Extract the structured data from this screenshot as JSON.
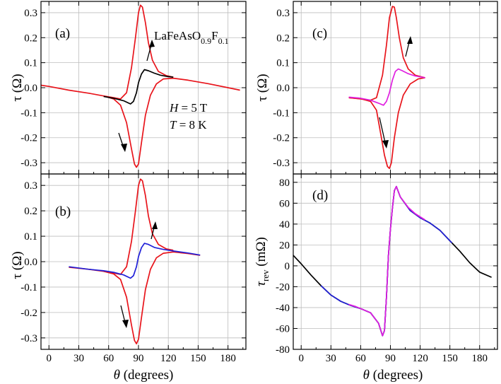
{
  "colors": {
    "red": "#e8141b",
    "black": "#000000",
    "blue": "#2020d8",
    "magenta": "#e020e0"
  },
  "chart_data": [
    {
      "type": "line",
      "panel": "(a)",
      "xlabel": "",
      "ylabel": "τ (Ω)",
      "xlim": [
        -8,
        198
      ],
      "ylim": [
        -0.345,
        0.345
      ],
      "xticks": [
        "0",
        "30",
        "60",
        "90",
        "120",
        "150",
        "180"
      ],
      "yticks": [
        "0.3",
        "0.2",
        "0.1",
        "0.0",
        "-0.1",
        "-0.2",
        "-0.3"
      ],
      "grid": true,
      "annotations": {
        "sample": "LaFeAsO",
        "sub1": "0.9",
        "mid": "F",
        "sub2": "0.1",
        "field_sym": "H",
        "field_val": " = 5 T",
        "temp_sym": "T",
        "temp_val": " = 8 K"
      },
      "series": [
        {
          "color": "red",
          "x": [
            -8,
            0,
            20,
            40,
            55,
            65,
            72,
            78,
            83,
            86,
            88,
            90,
            93,
            97,
            102,
            108,
            115,
            125,
            140,
            160,
            180,
            192
          ],
          "y": [
            0.01,
            0.005,
            -0.01,
            -0.022,
            -0.033,
            -0.045,
            -0.07,
            -0.14,
            -0.245,
            -0.305,
            -0.318,
            -0.305,
            -0.22,
            -0.11,
            -0.03,
            0.015,
            0.035,
            0.038,
            0.03,
            0.016,
            0.0,
            -0.01
          ]
        },
        {
          "color": "red",
          "x": [
            55,
            65,
            72,
            78,
            83,
            87,
            90,
            92,
            94,
            97,
            100,
            104,
            110,
            118,
            125
          ],
          "y": [
            -0.033,
            -0.04,
            -0.045,
            -0.02,
            0.08,
            0.2,
            0.3,
            0.33,
            0.322,
            0.26,
            0.18,
            0.11,
            0.065,
            0.048,
            0.042
          ]
        },
        {
          "color": "black",
          "x": [
            55,
            65,
            75,
            82,
            85,
            88,
            90,
            93,
            96,
            100,
            106,
            112,
            120,
            125
          ],
          "y": [
            -0.035,
            -0.042,
            -0.052,
            -0.065,
            -0.055,
            -0.02,
            0.02,
            0.055,
            0.072,
            0.068,
            0.058,
            0.05,
            0.044,
            0.042
          ]
        }
      ]
    },
    {
      "type": "line",
      "panel": "(b)",
      "xlabel": "θ (degrees)",
      "ylabel": "τ (Ω)",
      "xlim": [
        -8,
        198
      ],
      "ylim": [
        -0.345,
        0.345
      ],
      "xticks": [
        "0",
        "30",
        "60",
        "90",
        "120",
        "150",
        "180"
      ],
      "yticks": [
        "0.3",
        "0.2",
        "0.1",
        "0.0",
        "-0.1",
        "-0.2",
        "-0.3"
      ],
      "grid": true,
      "series": [
        {
          "color": "red",
          "x": [
            20,
            40,
            55,
            65,
            72,
            78,
            83,
            86,
            88,
            90,
            93,
            97,
            102,
            108,
            115,
            125,
            140,
            152
          ],
          "y": [
            -0.022,
            -0.03,
            -0.038,
            -0.048,
            -0.07,
            -0.14,
            -0.25,
            -0.31,
            -0.323,
            -0.305,
            -0.22,
            -0.11,
            -0.03,
            0.015,
            0.033,
            0.038,
            0.032,
            0.025
          ]
        },
        {
          "color": "red",
          "x": [
            55,
            65,
            72,
            78,
            83,
            87,
            90,
            92,
            94,
            97,
            100,
            104,
            110,
            118,
            125
          ],
          "y": [
            -0.038,
            -0.045,
            -0.05,
            -0.02,
            0.08,
            0.2,
            0.3,
            0.325,
            0.318,
            0.26,
            0.18,
            0.11,
            0.068,
            0.05,
            0.045
          ]
        },
        {
          "color": "blue",
          "x": [
            20,
            40,
            55,
            65,
            75,
            82,
            85,
            88,
            90,
            93,
            96,
            100,
            106,
            115,
            125,
            140,
            152
          ],
          "y": [
            -0.02,
            -0.03,
            -0.036,
            -0.042,
            -0.052,
            -0.065,
            -0.055,
            -0.02,
            0.02,
            0.055,
            0.072,
            0.068,
            0.056,
            0.048,
            0.042,
            0.034,
            0.026
          ]
        }
      ]
    },
    {
      "type": "line",
      "panel": "(c)",
      "xlabel": "",
      "ylabel": "τ (Ω)",
      "xlim": [
        -8,
        198
      ],
      "ylim": [
        -0.345,
        0.345
      ],
      "xticks": [
        "0",
        "30",
        "60",
        "90",
        "120",
        "150",
        "180"
      ],
      "yticks": [
        "0.3",
        "0.2",
        "0.1",
        "0.0",
        "-0.1",
        "-0.2",
        "-0.3"
      ],
      "grid": true,
      "series": [
        {
          "color": "red",
          "x": [
            48,
            60,
            70,
            76,
            80,
            84,
            87,
            89,
            91,
            94,
            98,
            103,
            110,
            118,
            125
          ],
          "y": [
            -0.04,
            -0.044,
            -0.055,
            -0.09,
            -0.18,
            -0.27,
            -0.315,
            -0.323,
            -0.3,
            -0.2,
            -0.1,
            -0.03,
            0.015,
            0.035,
            0.04
          ]
        },
        {
          "color": "red",
          "x": [
            48,
            60,
            70,
            76,
            82,
            86,
            89,
            92,
            94,
            96,
            99,
            103,
            108,
            115,
            125
          ],
          "y": [
            -0.04,
            -0.045,
            -0.05,
            -0.04,
            0.05,
            0.17,
            0.28,
            0.325,
            0.322,
            0.28,
            0.2,
            0.12,
            0.075,
            0.05,
            0.04
          ]
        },
        {
          "color": "magenta",
          "x": [
            48,
            60,
            70,
            78,
            83,
            86,
            89,
            92,
            95,
            98,
            102,
            108,
            115,
            125
          ],
          "y": [
            -0.038,
            -0.042,
            -0.05,
            -0.062,
            -0.07,
            -0.055,
            -0.02,
            0.03,
            0.065,
            0.075,
            0.068,
            0.056,
            0.047,
            0.04
          ]
        }
      ]
    },
    {
      "type": "line",
      "panel": "(d)",
      "xlabel": "θ (degrees)",
      "ylabel": "τrev (mΩ)",
      "ylabel_main": "τ",
      "ylabel_sub": "rev",
      "ylabel_unit": " (mΩ)",
      "xlim": [
        -8,
        198
      ],
      "ylim": [
        -80,
        88
      ],
      "xticks": [
        "0",
        "30",
        "60",
        "90",
        "120",
        "150",
        "180"
      ],
      "yticks": [
        "80",
        "60",
        "40",
        "20",
        "0",
        "-20",
        "-40",
        "-60",
        "-80"
      ],
      "grid": true,
      "series": [
        {
          "color": "black",
          "x": [
            -8,
            0,
            10,
            20,
            30,
            40,
            50,
            60,
            70,
            78,
            82,
            84,
            86,
            88,
            90,
            92,
            94,
            96,
            100,
            110,
            120,
            130,
            140,
            150,
            160,
            170,
            180,
            192
          ],
          "y": [
            10,
            2,
            -9,
            -19,
            -28,
            -34,
            -38,
            -41,
            -45,
            -55,
            -67,
            -62,
            -30,
            10,
            35,
            55,
            72,
            76,
            66,
            53,
            46,
            41,
            34,
            24,
            14,
            3,
            -6,
            -11
          ]
        },
        {
          "color": "blue",
          "x": [
            20,
            30,
            40,
            50,
            60,
            70,
            78,
            82,
            84,
            86,
            88,
            90,
            92,
            94,
            96,
            100,
            110,
            120,
            130,
            140,
            152
          ],
          "y": [
            -19,
            -28,
            -34,
            -38,
            -41,
            -45,
            -55,
            -67,
            -62,
            -30,
            10,
            35,
            55,
            72,
            76,
            66,
            53,
            46,
            41,
            34,
            22
          ]
        },
        {
          "color": "magenta",
          "x": [
            48,
            55,
            60,
            70,
            78,
            82,
            84,
            86,
            88,
            90,
            92,
            94,
            96,
            100,
            108,
            115,
            125
          ],
          "y": [
            -37,
            -39,
            -41,
            -45,
            -55,
            -67,
            -62,
            -30,
            10,
            35,
            55,
            72,
            76,
            66,
            56,
            50,
            44
          ]
        }
      ]
    }
  ]
}
